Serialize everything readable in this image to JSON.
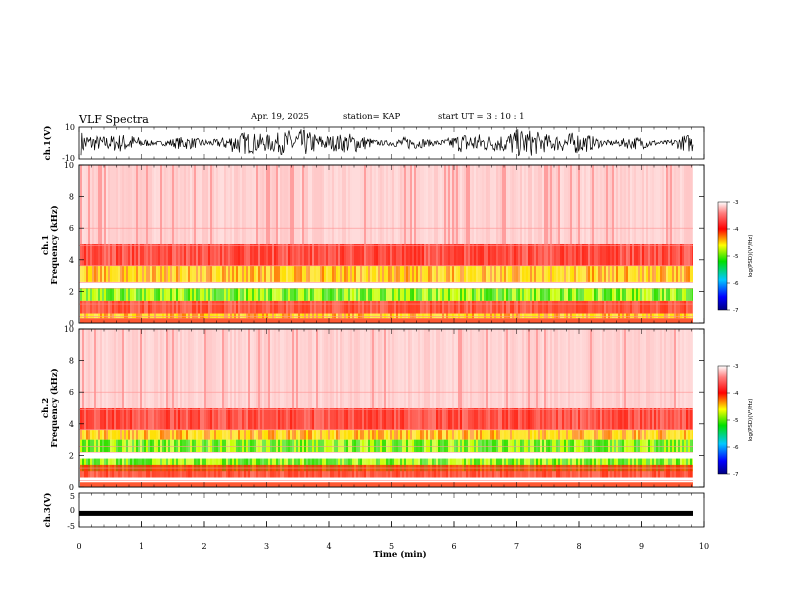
{
  "header": {
    "title": "VLF Spectra",
    "date": "Apr. 19, 2025",
    "station": "station= KAP",
    "start": "start  UT =   3 : 10 : 1"
  },
  "chart_data": [
    {
      "type": "line",
      "ylabel": "ch.1(V)",
      "ylim": [
        -10,
        10
      ],
      "y_ticklabels": [
        "10",
        "-10"
      ],
      "description_visible": "dense black oscillating waveform filling most of range"
    },
    {
      "type": "heatmap",
      "ylabel_line1": "ch.1",
      "ylabel_line2": "Frequency (kHz)",
      "ylim": [
        0,
        10
      ],
      "y_ticks": [
        0,
        2,
        4,
        6,
        8,
        10
      ],
      "colorbar": {
        "label": "log(PSD)(V²/Hz)",
        "ticks": [
          -3,
          -4,
          -5,
          -6,
          -7
        ],
        "range": [
          -7,
          -3
        ]
      },
      "bands_khz": [
        [
          1.4,
          2.2,
          "green"
        ],
        [
          2.6,
          3.6,
          "yellow"
        ],
        [
          0.3,
          0.6,
          "yellow"
        ]
      ]
    },
    {
      "type": "heatmap",
      "ylabel_line1": "ch.2",
      "ylabel_line2": "Frequency (kHz)",
      "ylim": [
        0,
        10
      ],
      "y_ticks": [
        0,
        2,
        4,
        6,
        8,
        10
      ],
      "colorbar": {
        "label": "log(PSD)(V²/Hz)",
        "ticks": [
          -3,
          -4,
          -5,
          -6,
          -7
        ],
        "range": [
          -7,
          -3
        ]
      },
      "bands_khz": [
        [
          1.0,
          1.8,
          "green"
        ],
        [
          2.2,
          3.0,
          "green"
        ],
        [
          3.0,
          3.6,
          "yellow"
        ]
      ]
    },
    {
      "type": "line",
      "ylabel": "ch.3(V)",
      "ylim": [
        -5,
        5
      ],
      "y_ticklabels": [
        "5",
        "0",
        "-5"
      ],
      "level": -1,
      "xlabel": "Time (min)",
      "xlim": [
        0,
        10
      ],
      "x_ticks": [
        0,
        1,
        2,
        3,
        4,
        5,
        6,
        7,
        8,
        9,
        10
      ]
    }
  ]
}
